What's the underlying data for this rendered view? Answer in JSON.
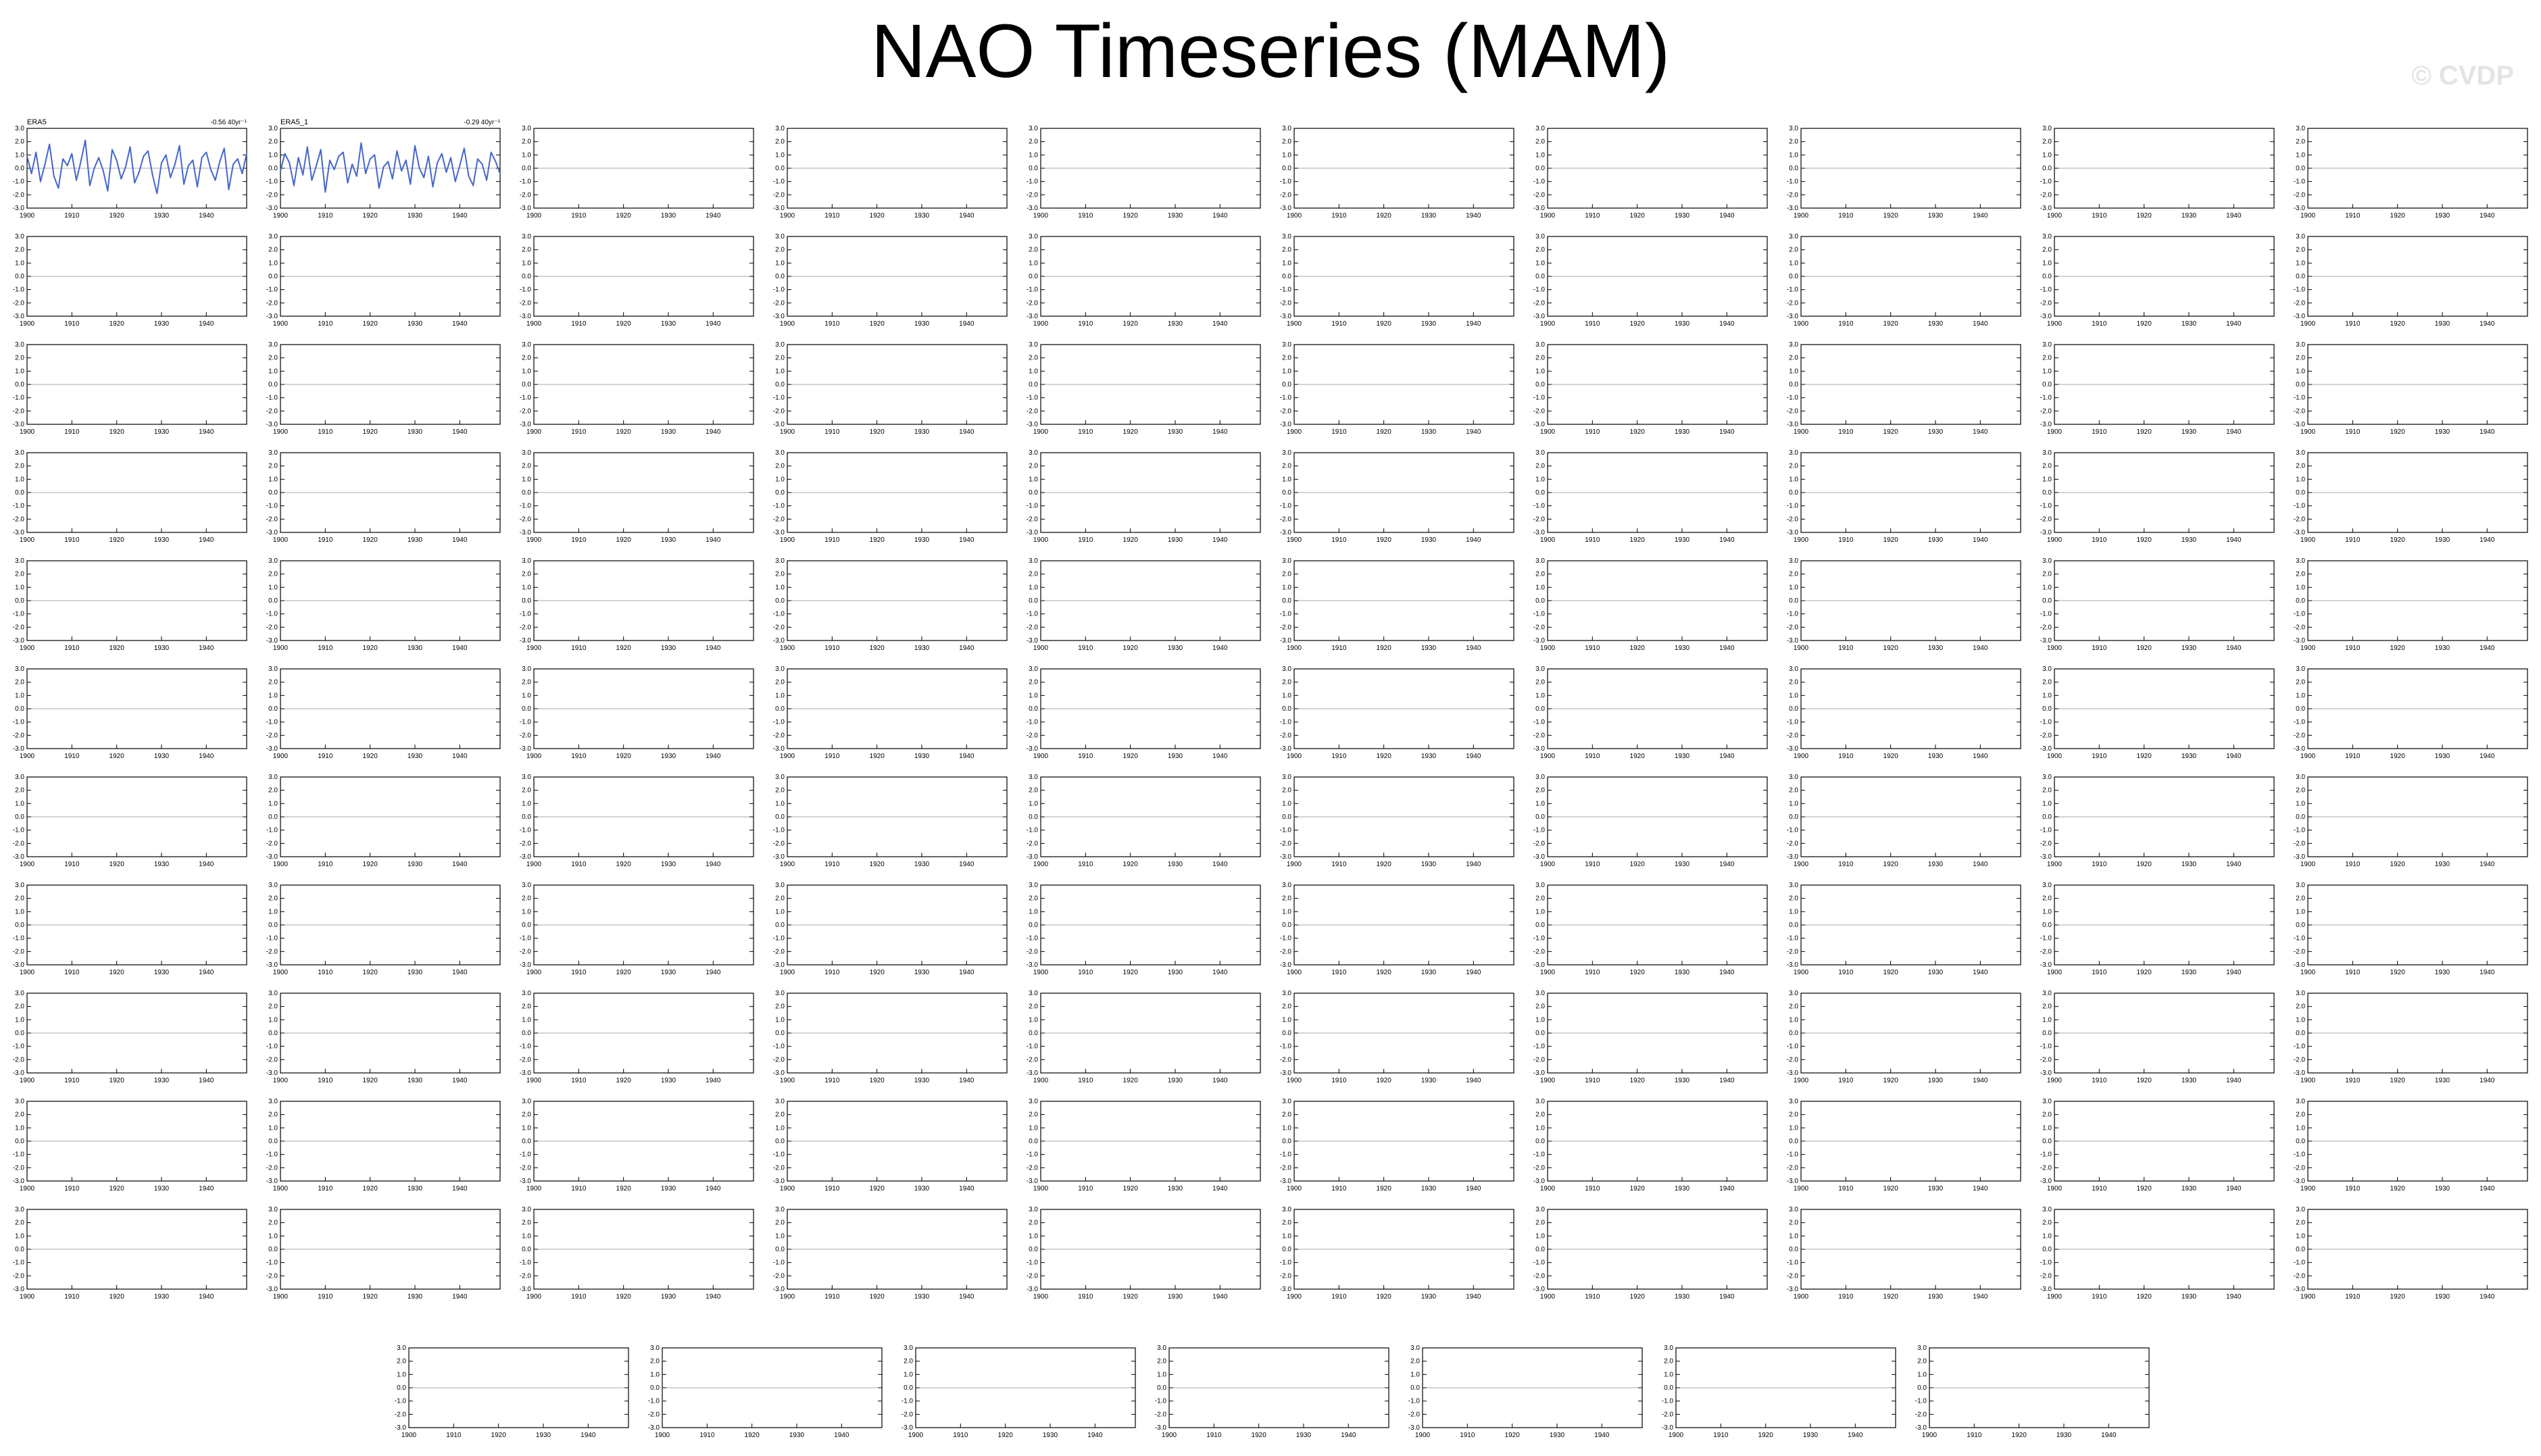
{
  "title": "NAO Timeseries (MAM)",
  "watermark": "© CVDP",
  "colors": {
    "obs_line": "#4466cc",
    "ens_mean_line": "#777777",
    "zero_line": "#aaaaaa",
    "obs_title": "#000000",
    "dcent_title": "#2c6a8c",
    "ersst_title": "#4a8a5e",
    "lens_title": "#c8a85a"
  },
  "chart_data": {
    "type": "line",
    "x": [
      1900,
      1901,
      1902,
      1903,
      1904,
      1905,
      1906,
      1907,
      1908,
      1909,
      1910,
      1911,
      1912,
      1913,
      1914,
      1915,
      1916,
      1917,
      1918,
      1919,
      1920,
      1921,
      1922,
      1923,
      1924,
      1925,
      1926,
      1927,
      1928,
      1929,
      1930,
      1931,
      1932,
      1933,
      1934,
      1935,
      1936,
      1937,
      1938,
      1939,
      1940,
      1941,
      1942,
      1943,
      1944,
      1945,
      1946,
      1947,
      1948,
      1949
    ],
    "xticks": [
      1900,
      1910,
      1920,
      1930,
      1940
    ],
    "ylim": [
      -3.0,
      3.0
    ],
    "yticks": [
      -3.0,
      -2.0,
      -1.0,
      0.0,
      1.0,
      2.0,
      3.0
    ],
    "panels": [
      {
        "title": "ERA5",
        "trend": "-0.56 40yr⁻¹",
        "kind": "obs",
        "values": [
          0.9,
          -0.4,
          1.2,
          -1.0,
          0.3,
          1.8,
          -0.6,
          -1.5,
          0.7,
          0.2,
          1.1,
          -0.9,
          0.5,
          2.1,
          -1.3,
          0.0,
          0.8,
          -0.2,
          -1.7,
          1.4,
          0.6,
          -0.8,
          0.1,
          1.6,
          -1.1,
          -0.3,
          0.9,
          1.3,
          -0.5,
          -1.9,
          0.4,
          1.0,
          -0.7,
          0.3,
          1.7,
          -1.2,
          0.2,
          0.6,
          -1.4,
          0.8,
          1.2,
          -0.1,
          -0.9,
          0.5,
          1.5,
          -1.6,
          0.3,
          0.7,
          -0.4,
          1.1
        ]
      },
      {
        "title": "ERA5_1",
        "trend": "-0.29 40yr⁻¹",
        "kind": "obs",
        "values": [
          -0.2,
          1.1,
          0.4,
          -1.3,
          0.8,
          -0.5,
          1.6,
          -0.9,
          0.2,
          1.4,
          -1.8,
          0.6,
          -0.1,
          0.9,
          1.2,
          -1.1,
          0.3,
          -0.6,
          1.9,
          -0.4,
          0.7,
          1.0,
          -1.5,
          0.1,
          0.5,
          -0.8,
          1.3,
          -0.2,
          0.6,
          -1.2,
          1.7,
          0.0,
          -0.7,
          0.9,
          -1.4,
          0.4,
          1.1,
          -0.3,
          0.8,
          -1.0,
          0.2,
          1.5,
          -0.6,
          -1.3,
          0.7,
          0.3,
          -0.9,
          1.2,
          0.5,
          -0.4
        ]
      }
    ]
  }
}
